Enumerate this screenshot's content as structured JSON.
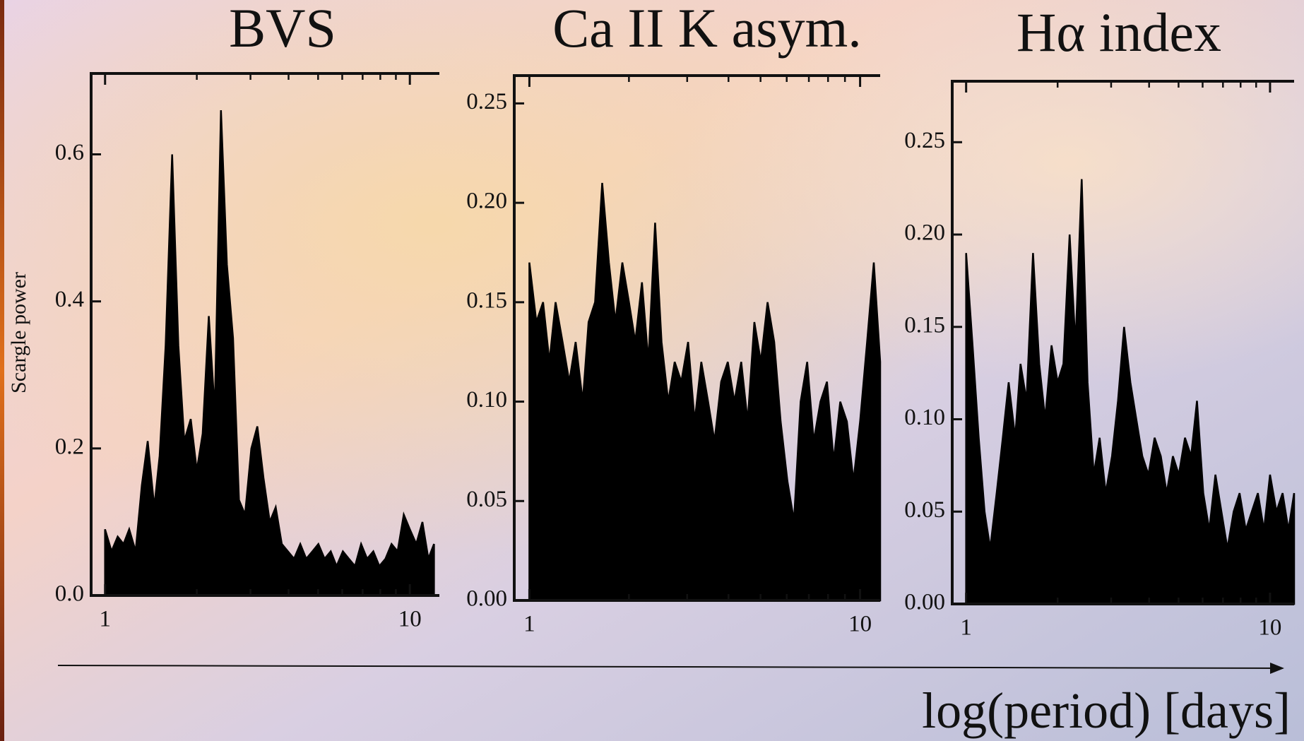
{
  "xlabel": "log(period) [days]",
  "chart_data": [
    {
      "type": "area",
      "title": "BVS",
      "ylabel": "Scargle power",
      "color": "#000000",
      "xscale": "log",
      "x": [
        1.0,
        1.05,
        1.1,
        1.15,
        1.2,
        1.26,
        1.32,
        1.38,
        1.45,
        1.51,
        1.58,
        1.66,
        1.74,
        1.82,
        1.91,
        2.0,
        2.09,
        2.19,
        2.29,
        2.4,
        2.51,
        2.63,
        2.75,
        2.88,
        3.02,
        3.16,
        3.31,
        3.47,
        3.63,
        3.8,
        3.98,
        4.17,
        4.37,
        4.57,
        4.79,
        5.01,
        5.25,
        5.5,
        5.75,
        6.03,
        6.31,
        6.61,
        6.92,
        7.24,
        7.59,
        7.94,
        8.32,
        8.71,
        9.12,
        9.55,
        10.0,
        10.5,
        11.0,
        11.5,
        12.0
      ],
      "values": [
        0.09,
        0.06,
        0.08,
        0.07,
        0.09,
        0.06,
        0.15,
        0.21,
        0.12,
        0.19,
        0.34,
        0.6,
        0.34,
        0.21,
        0.24,
        0.17,
        0.22,
        0.38,
        0.25,
        0.66,
        0.45,
        0.35,
        0.13,
        0.11,
        0.2,
        0.23,
        0.16,
        0.1,
        0.12,
        0.07,
        0.06,
        0.05,
        0.07,
        0.05,
        0.06,
        0.07,
        0.05,
        0.06,
        0.04,
        0.06,
        0.05,
        0.04,
        0.07,
        0.05,
        0.06,
        0.04,
        0.05,
        0.07,
        0.06,
        0.11,
        0.09,
        0.07,
        0.1,
        0.05,
        0.07
      ],
      "xlim": [
        0.9,
        12.5
      ],
      "ylim": [
        0,
        0.71
      ],
      "xticks": [
        1,
        10
      ],
      "xminor_ticks": [
        2,
        3,
        4,
        5,
        6,
        7,
        8,
        9
      ],
      "yticks": [
        {
          "value": 0,
          "label": "0.0"
        },
        0.2,
        0.4,
        0.6
      ]
    },
    {
      "type": "area",
      "title": "Ca II K asym.",
      "color": "#000000",
      "xscale": "log",
      "x": [
        1.0,
        1.05,
        1.1,
        1.15,
        1.2,
        1.26,
        1.32,
        1.38,
        1.45,
        1.51,
        1.58,
        1.66,
        1.74,
        1.82,
        1.91,
        2.0,
        2.09,
        2.19,
        2.29,
        2.4,
        2.51,
        2.63,
        2.75,
        2.88,
        3.02,
        3.16,
        3.31,
        3.47,
        3.63,
        3.8,
        3.98,
        4.17,
        4.37,
        4.57,
        4.79,
        5.01,
        5.25,
        5.5,
        5.75,
        6.03,
        6.31,
        6.61,
        6.92,
        7.24,
        7.59,
        7.94,
        8.32,
        8.71,
        9.12,
        9.55,
        10.0,
        10.5,
        11.0,
        11.5
      ],
      "values": [
        0.17,
        0.14,
        0.15,
        0.12,
        0.15,
        0.13,
        0.11,
        0.13,
        0.1,
        0.14,
        0.15,
        0.21,
        0.17,
        0.14,
        0.17,
        0.15,
        0.13,
        0.16,
        0.12,
        0.19,
        0.13,
        0.1,
        0.12,
        0.11,
        0.13,
        0.09,
        0.12,
        0.1,
        0.08,
        0.11,
        0.12,
        0.1,
        0.12,
        0.09,
        0.14,
        0.12,
        0.15,
        0.13,
        0.09,
        0.06,
        0.04,
        0.1,
        0.12,
        0.08,
        0.1,
        0.11,
        0.07,
        0.1,
        0.09,
        0.06,
        0.09,
        0.13,
        0.17,
        0.12
      ],
      "xlim": [
        0.9,
        11.5
      ],
      "ylim": [
        0,
        0.264
      ],
      "xticks": [
        1,
        10
      ],
      "xminor_ticks": [
        2,
        3,
        4,
        5,
        6,
        7,
        8,
        9
      ],
      "yticks": [
        {
          "value": 0,
          "label": "0.00"
        },
        0.05,
        {
          "value": 0.1,
          "label": "0.10"
        },
        0.15,
        {
          "value": 0.2,
          "label": "0.20"
        },
        0.25
      ]
    },
    {
      "type": "area",
      "title": "Hα index",
      "color": "#000000",
      "xscale": "log",
      "x": [
        1.0,
        1.05,
        1.1,
        1.15,
        1.2,
        1.26,
        1.32,
        1.38,
        1.45,
        1.51,
        1.58,
        1.66,
        1.74,
        1.82,
        1.91,
        2.0,
        2.09,
        2.19,
        2.29,
        2.4,
        2.51,
        2.63,
        2.75,
        2.88,
        3.02,
        3.16,
        3.31,
        3.47,
        3.63,
        3.8,
        3.98,
        4.17,
        4.37,
        4.57,
        4.79,
        5.01,
        5.25,
        5.5,
        5.75,
        6.03,
        6.31,
        6.61,
        6.92,
        7.24,
        7.59,
        7.94,
        8.32,
        8.71,
        9.12,
        9.55,
        10.0,
        10.5,
        11.0,
        11.5,
        12.0
      ],
      "values": [
        0.19,
        0.14,
        0.09,
        0.05,
        0.03,
        0.06,
        0.09,
        0.12,
        0.09,
        0.13,
        0.11,
        0.19,
        0.13,
        0.1,
        0.14,
        0.12,
        0.13,
        0.2,
        0.14,
        0.23,
        0.12,
        0.07,
        0.09,
        0.06,
        0.08,
        0.11,
        0.15,
        0.12,
        0.1,
        0.08,
        0.07,
        0.09,
        0.08,
        0.06,
        0.08,
        0.07,
        0.09,
        0.08,
        0.11,
        0.06,
        0.04,
        0.07,
        0.05,
        0.03,
        0.05,
        0.06,
        0.04,
        0.05,
        0.06,
        0.04,
        0.07,
        0.05,
        0.06,
        0.04,
        0.06
      ],
      "xlim": [
        0.9,
        12.0
      ],
      "ylim": [
        0,
        0.283
      ],
      "xticks": [
        1,
        10
      ],
      "xminor_ticks": [
        2,
        3,
        4,
        5,
        6,
        7,
        8,
        9
      ],
      "yticks": [
        {
          "value": 0,
          "label": "0.00"
        },
        0.05,
        {
          "value": 0.1,
          "label": "0.10"
        },
        0.15,
        {
          "value": 0.2,
          "label": "0.20"
        },
        0.25
      ]
    }
  ]
}
